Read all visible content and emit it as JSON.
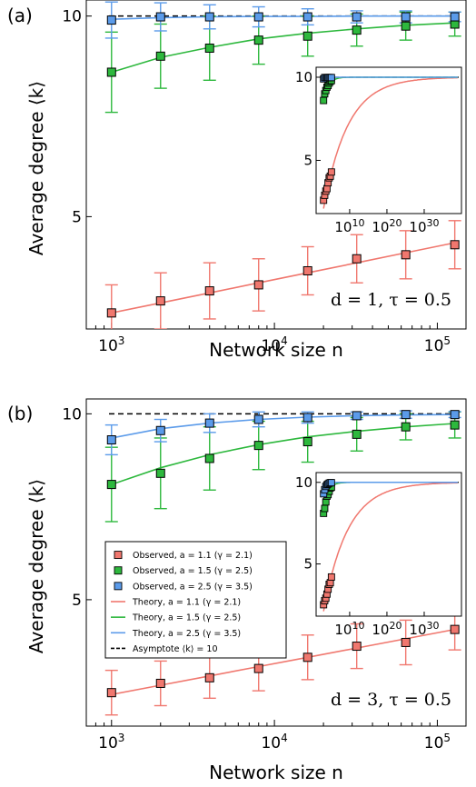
{
  "panels": [
    {
      "panel_label": "(a)",
      "annotation": "d = 1, τ = 0.5",
      "xlabel": "Network size n",
      "ylabel": "Average degree ⟨k⟩",
      "xlim": [
        700,
        150000
      ],
      "ylim": [
        2.2,
        10.4
      ],
      "xscale": "log",
      "xticks": [
        {
          "value": 1000,
          "label": "10^3"
        },
        {
          "value": 10000,
          "label": "10^4"
        },
        {
          "value": 100000,
          "label": "10^5"
        }
      ],
      "yticks": [
        {
          "value": 5,
          "label": "5"
        },
        {
          "value": 10,
          "label": "10"
        }
      ],
      "asymptote": 10,
      "legend": null,
      "series": [
        {
          "key": "a11",
          "color": "#f0776e",
          "x": [
            1000,
            2000,
            4000,
            8000,
            16000,
            32000,
            64000,
            128000
          ],
          "y": [
            2.6,
            2.9,
            3.15,
            3.3,
            3.65,
            3.95,
            4.05,
            4.3
          ],
          "err": [
            0.7,
            0.7,
            0.7,
            0.65,
            0.6,
            0.6,
            0.6,
            0.6
          ],
          "theory": [
            2.6,
            2.85,
            3.1,
            3.35,
            3.6,
            3.85,
            4.1,
            4.35
          ]
        },
        {
          "key": "a15",
          "color": "#2db83d",
          "x": [
            1000,
            2000,
            4000,
            8000,
            16000,
            32000,
            64000,
            128000
          ],
          "y": [
            8.6,
            9.0,
            9.2,
            9.4,
            9.5,
            9.65,
            9.75,
            9.8
          ],
          "err": [
            1.0,
            0.8,
            0.8,
            0.6,
            0.5,
            0.4,
            0.35,
            0.3
          ],
          "theory": [
            8.6,
            8.97,
            9.22,
            9.43,
            9.57,
            9.68,
            9.77,
            9.83
          ]
        },
        {
          "key": "a25",
          "color": "#5b9bea",
          "x": [
            1000,
            2000,
            4000,
            8000,
            16000,
            32000,
            64000,
            128000
          ],
          "y": [
            9.9,
            9.98,
            9.98,
            9.98,
            9.98,
            9.98,
            9.98,
            9.98
          ],
          "err": [
            0.45,
            0.35,
            0.3,
            0.25,
            0.2,
            0.15,
            0.15,
            0.12
          ],
          "theory": [
            9.92,
            9.96,
            9.98,
            9.99,
            9.99,
            10.0,
            10.0,
            10.0
          ]
        }
      ],
      "inset": {
        "xticks": [
          {
            "value": 10,
            "label": "10^10"
          },
          {
            "value": 20,
            "label": "10^20"
          },
          {
            "value": 30,
            "label": "10^30"
          }
        ],
        "yticks": [
          {
            "value": 5,
            "label": "5"
          },
          {
            "value": 10,
            "label": "10"
          }
        ],
        "xlim_log10": [
          1,
          40
        ],
        "ylim": [
          1.8,
          10.6
        ]
      }
    },
    {
      "panel_label": "(b)",
      "annotation": "d = 3, τ = 0.5",
      "xlabel": "Network size n",
      "ylabel": "Average degree ⟨k⟩",
      "xlim": [
        700,
        150000
      ],
      "ylim": [
        1.6,
        10.4
      ],
      "xscale": "log",
      "xticks": [
        {
          "value": 1000,
          "label": "10^3"
        },
        {
          "value": 10000,
          "label": "10^4"
        },
        {
          "value": 100000,
          "label": "10^5"
        }
      ],
      "yticks": [
        {
          "value": 5,
          "label": "5"
        },
        {
          "value": 10,
          "label": "10"
        }
      ],
      "asymptote": 10,
      "legend": [
        {
          "type": "square",
          "color": "#f0776e",
          "label": "Observed, a = 1.1 (γ = 2.1)"
        },
        {
          "type": "square",
          "color": "#2db83d",
          "label": "Observed, a = 1.5 (γ = 2.5)"
        },
        {
          "type": "square",
          "color": "#5b9bea",
          "label": "Observed, a = 2.5 (γ = 3.5)"
        },
        {
          "type": "line",
          "color": "#f0776e",
          "label": "Theory, a = 1.1 (γ = 2.1)"
        },
        {
          "type": "line",
          "color": "#2db83d",
          "label": "Theory, a = 1.5 (γ = 2.5)"
        },
        {
          "type": "line",
          "color": "#5b9bea",
          "label": "Theory, a = 2.5 (γ = 3.5)"
        },
        {
          "type": "dash",
          "color": "#000000",
          "label": "Asymptote ⟨k⟩ = 10"
        }
      ],
      "series": [
        {
          "key": "a11",
          "color": "#f0776e",
          "x": [
            1000,
            2000,
            4000,
            8000,
            16000,
            32000,
            64000,
            128000
          ],
          "y": [
            2.5,
            2.75,
            2.9,
            3.15,
            3.45,
            3.75,
            3.85,
            4.2
          ],
          "err": [
            0.6,
            0.6,
            0.55,
            0.6,
            0.6,
            0.6,
            0.6,
            0.55
          ],
          "theory": [
            2.45,
            2.7,
            2.95,
            3.2,
            3.45,
            3.7,
            3.95,
            4.2
          ]
        },
        {
          "key": "a15",
          "color": "#2db83d",
          "x": [
            1000,
            2000,
            4000,
            8000,
            16000,
            32000,
            64000,
            128000
          ],
          "y": [
            8.1,
            8.4,
            8.8,
            9.15,
            9.25,
            9.45,
            9.65,
            9.7
          ],
          "err": [
            1.0,
            0.95,
            0.85,
            0.65,
            0.55,
            0.45,
            0.35,
            0.35
          ],
          "theory": [
            8.1,
            8.55,
            8.9,
            9.17,
            9.38,
            9.53,
            9.65,
            9.74
          ]
        },
        {
          "key": "a25",
          "color": "#5b9bea",
          "x": [
            1000,
            2000,
            4000,
            8000,
            16000,
            32000,
            64000,
            128000
          ],
          "y": [
            9.3,
            9.55,
            9.75,
            9.85,
            9.9,
            9.95,
            9.98,
            9.98
          ],
          "err": [
            0.4,
            0.3,
            0.25,
            0.2,
            0.15,
            0.1,
            0.1,
            0.08
          ],
          "theory": [
            9.35,
            9.6,
            9.75,
            9.85,
            9.91,
            9.95,
            9.97,
            9.98
          ]
        }
      ],
      "inset": {
        "xticks": [
          {
            "value": 10,
            "label": "10^10"
          },
          {
            "value": 20,
            "label": "10^20"
          },
          {
            "value": 30,
            "label": "10^30"
          }
        ],
        "yticks": [
          {
            "value": 5,
            "label": "5"
          },
          {
            "value": 10,
            "label": "10"
          }
        ],
        "xlim_log10": [
          1,
          40
        ],
        "ylim": [
          1.8,
          10.6
        ]
      }
    }
  ],
  "chart_data": [
    {
      "type": "scatter",
      "title": "",
      "xlabel": "Network size n",
      "ylabel": "Average degree ⟨k⟩",
      "xscale": "log",
      "xlim": [
        700,
        150000
      ],
      "ylim": [
        2.2,
        10.4
      ],
      "x": [
        1000,
        2000,
        4000,
        8000,
        16000,
        32000,
        64000,
        128000
      ],
      "series": [
        {
          "name": "Observed, a = 1.1 (γ = 2.1)",
          "values": [
            2.6,
            2.9,
            3.15,
            3.3,
            3.65,
            3.95,
            4.05,
            4.3
          ]
        },
        {
          "name": "Observed, a = 1.5 (γ = 2.5)",
          "values": [
            8.6,
            9.0,
            9.2,
            9.4,
            9.5,
            9.65,
            9.75,
            9.8
          ]
        },
        {
          "name": "Observed, a = 2.5 (γ = 3.5)",
          "values": [
            9.9,
            9.98,
            9.98,
            9.98,
            9.98,
            9.98,
            9.98,
            9.98
          ]
        }
      ],
      "annotation": "d = 1, τ = 0.5"
    },
    {
      "type": "scatter",
      "title": "",
      "xlabel": "Network size n",
      "ylabel": "Average degree ⟨k⟩",
      "xscale": "log",
      "xlim": [
        700,
        150000
      ],
      "ylim": [
        1.6,
        10.4
      ],
      "x": [
        1000,
        2000,
        4000,
        8000,
        16000,
        32000,
        64000,
        128000
      ],
      "series": [
        {
          "name": "Observed, a = 1.1 (γ = 2.1)",
          "values": [
            2.5,
            2.75,
            2.9,
            3.15,
            3.45,
            3.75,
            3.85,
            4.2
          ]
        },
        {
          "name": "Observed, a = 1.5 (γ = 2.5)",
          "values": [
            8.1,
            8.4,
            8.8,
            9.15,
            9.25,
            9.45,
            9.65,
            9.7
          ]
        },
        {
          "name": "Observed, a = 2.5 (γ = 3.5)",
          "values": [
            9.3,
            9.55,
            9.75,
            9.85,
            9.9,
            9.95,
            9.98,
            9.98
          ]
        }
      ],
      "legend": "center-left",
      "annotation": "d = 3, τ = 0.5"
    }
  ]
}
